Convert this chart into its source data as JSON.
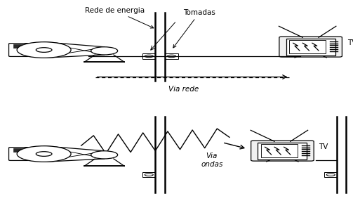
{
  "bg_color": "#ffffff",
  "fig_width": 5.03,
  "fig_height": 2.96,
  "dpi": 100,
  "panel1": {
    "label_rede": "Rede de energia",
    "label_tomadas": "Tomadas",
    "label_via": "Via rede",
    "label_tv": "TV"
  },
  "panel2": {
    "label_via": "Via\nondas",
    "label_tv": "TV"
  }
}
